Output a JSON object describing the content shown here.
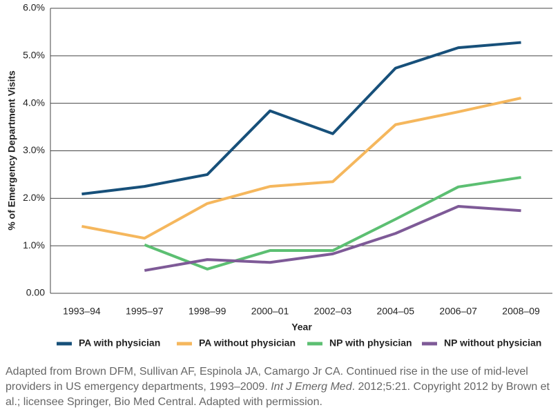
{
  "chart_data": {
    "type": "line",
    "x_label": "Year",
    "y_label": "% of Emergency Department Visits",
    "categories": [
      "1993–94",
      "1995–97",
      "1998–99",
      "2000–01",
      "2002–03",
      "2004–05",
      "2006–07",
      "2008–09"
    ],
    "series": [
      {
        "name": "PA with physician",
        "color": "#17507a",
        "values": [
          2.09,
          2.25,
          2.5,
          3.84,
          3.36,
          4.74,
          5.17,
          5.28
        ]
      },
      {
        "name": "PA without physician",
        "color": "#f5b75d",
        "values": [
          1.41,
          1.16,
          1.89,
          2.25,
          2.35,
          3.55,
          3.82,
          4.11
        ]
      },
      {
        "name": "NP with physician",
        "color": "#5cbf72",
        "values": [
          null,
          1.02,
          0.51,
          0.9,
          0.9,
          1.56,
          2.24,
          2.44
        ]
      },
      {
        "name": "NP without physician",
        "color": "#7e5a97",
        "values": [
          null,
          0.48,
          0.71,
          0.65,
          0.83,
          1.26,
          1.83,
          1.74
        ]
      }
    ],
    "ylim": [
      0,
      6
    ],
    "yticks": [
      {
        "value": 0,
        "label": "0.00"
      },
      {
        "value": 1,
        "label": "1.0%"
      },
      {
        "value": 2,
        "label": "2.0%"
      },
      {
        "value": 3,
        "label": "3.0%"
      },
      {
        "value": 4,
        "label": "4.0%"
      },
      {
        "value": 5,
        "label": "5.0%"
      },
      {
        "value": 6,
        "label": "6.0%"
      }
    ],
    "grid": true,
    "legend": "bottom"
  },
  "footnote": {
    "text_before": "Adapted from Brown DFM, Sullivan AF, Espinola JA, Camargo Jr CA. Continued rise in the use of mid-level providers in US emergency departments, 1993–2009. ",
    "journal": "Int J Emerg Med",
    "text_after": ". 2012;5:21. Copyright 2012 by Brown et al.; licensee Springer, Bio Med Central. Adapted with permission."
  }
}
